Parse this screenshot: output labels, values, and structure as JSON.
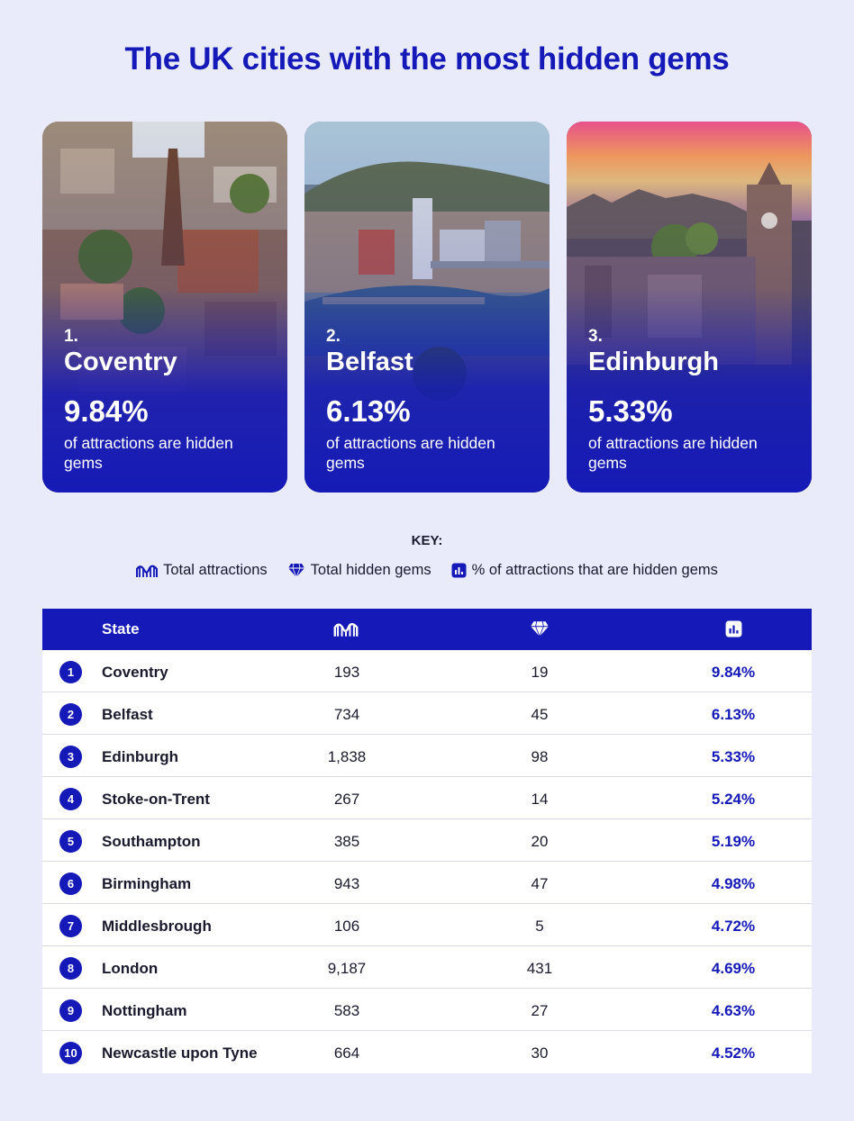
{
  "title": "The UK cities with the most hidden gems",
  "colors": {
    "brand": "#1419b8",
    "background": "#e9ebfb",
    "row_divider": "#d9dbe6"
  },
  "cards": [
    {
      "rank": "1.",
      "city": "Coventry",
      "pct": "9.84%",
      "desc": "of attractions are hidden gems",
      "photo": "coventry-aerial-photo"
    },
    {
      "rank": "2.",
      "city": "Belfast",
      "pct": "6.13%",
      "desc": "of attractions are hidden gems",
      "photo": "belfast-river-photo"
    },
    {
      "rank": "3.",
      "city": "Edinburgh",
      "pct": "5.33%",
      "desc": "of attractions are hidden gems",
      "photo": "edinburgh-skyline-photo"
    }
  ],
  "key": {
    "title": "KEY:",
    "items": [
      {
        "icon": "roller-coaster-icon",
        "label": "Total attractions"
      },
      {
        "icon": "gem-icon",
        "label": "Total hidden gems"
      },
      {
        "icon": "bar-chart-icon",
        "label": "% of attractions that are hidden gems"
      }
    ]
  },
  "chart_data": {
    "type": "table",
    "columns": [
      "State",
      "Total attractions",
      "Total hidden gems",
      "% of attractions that are hidden gems"
    ],
    "header_label": "State",
    "rows": [
      {
        "rank": "1",
        "city": "Coventry",
        "total": "193",
        "gems": "19",
        "pct": "9.84%"
      },
      {
        "rank": "2",
        "city": "Belfast",
        "total": "734",
        "gems": "45",
        "pct": "6.13%"
      },
      {
        "rank": "3",
        "city": "Edinburgh",
        "total": "1,838",
        "gems": "98",
        "pct": "5.33%"
      },
      {
        "rank": "4",
        "city": "Stoke-on-Trent",
        "total": "267",
        "gems": "14",
        "pct": "5.24%"
      },
      {
        "rank": "5",
        "city": "Southampton",
        "total": "385",
        "gems": "20",
        "pct": "5.19%"
      },
      {
        "rank": "6",
        "city": "Birmingham",
        "total": "943",
        "gems": "47",
        "pct": "4.98%"
      },
      {
        "rank": "7",
        "city": "Middlesbrough",
        "total": "106",
        "gems": "5",
        "pct": "4.72%"
      },
      {
        "rank": "8",
        "city": "London",
        "total": "9,187",
        "gems": "431",
        "pct": "4.69%"
      },
      {
        "rank": "9",
        "city": "Nottingham",
        "total": "583",
        "gems": "27",
        "pct": "4.63%"
      },
      {
        "rank": "10",
        "city": "Newcastle upon Tyne",
        "total": "664",
        "gems": "30",
        "pct": "4.52%"
      }
    ]
  }
}
